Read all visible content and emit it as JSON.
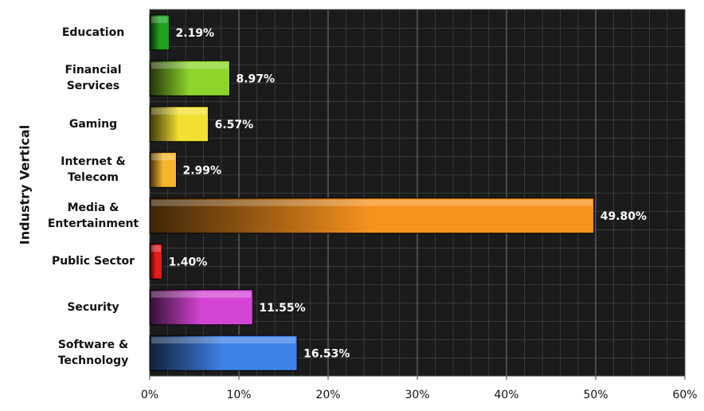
{
  "chart_data": {
    "type": "bar",
    "orientation": "horizontal",
    "y_label": "Industry Vertical",
    "categories": [
      "Education",
      "Financial Services",
      "Gaming",
      "Internet & Telecom",
      "Media & Entertainment",
      "Public Sector",
      "Security",
      "Software & Technology"
    ],
    "values": [
      2.19,
      8.97,
      6.57,
      2.99,
      49.8,
      1.4,
      11.55,
      16.53
    ],
    "value_labels": [
      "2.19%",
      "8.97%",
      "6.57%",
      "2.99%",
      "49.80%",
      "1.40%",
      "11.55%",
      "16.53%"
    ],
    "colors": [
      "#1fa01f",
      "#8ed52c",
      "#f2e031",
      "#f6b52c",
      "#f7921e",
      "#e51d1d",
      "#d444d4",
      "#3f82e6"
    ],
    "xlim": [
      0,
      60
    ],
    "xticks": [
      {
        "value": 0,
        "label": "0%"
      },
      {
        "value": 10,
        "label": "10%"
      },
      {
        "value": 20,
        "label": "20%"
      },
      {
        "value": 30,
        "label": "30%"
      },
      {
        "value": 40,
        "label": "40%"
      },
      {
        "value": 50,
        "label": "50%"
      },
      {
        "value": 60,
        "label": "60%"
      }
    ],
    "grid": true
  }
}
